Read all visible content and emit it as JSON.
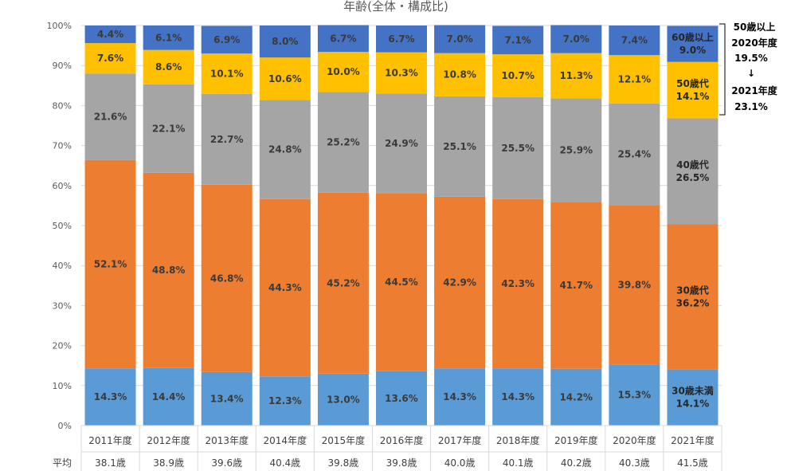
{
  "chart_data": {
    "type": "bar",
    "stacked": true,
    "title": "年齢(全体・構成比)",
    "categories": [
      "2011年度",
      "2012年度",
      "2013年度",
      "2014年度",
      "2015年度",
      "2016年度",
      "2017年度",
      "2018年度",
      "2019年度",
      "2020年度",
      "2021年度"
    ],
    "yticks": [
      "0%",
      "10%",
      "20%",
      "30%",
      "40%",
      "50%",
      "60%",
      "70%",
      "80%",
      "90%",
      "100%"
    ],
    "ylim": [
      0,
      100
    ],
    "series": [
      {
        "name": "30歳未満",
        "color": "#5b9bd5",
        "values": [
          14.3,
          14.4,
          13.4,
          12.3,
          13.0,
          13.6,
          14.3,
          14.3,
          14.2,
          15.3,
          14.1
        ]
      },
      {
        "name": "30歳代",
        "color": "#ed7d31",
        "values": [
          52.1,
          48.8,
          46.8,
          44.3,
          45.2,
          44.5,
          42.9,
          42.3,
          41.7,
          39.8,
          36.2
        ]
      },
      {
        "name": "40歳代",
        "color": "#a5a5a5",
        "values": [
          21.6,
          22.1,
          22.7,
          24.8,
          25.2,
          24.9,
          25.1,
          25.5,
          25.9,
          25.4,
          26.5
        ]
      },
      {
        "name": "50歳代",
        "color": "#ffc000",
        "values": [
          7.6,
          8.6,
          10.1,
          10.6,
          10.0,
          10.3,
          10.8,
          10.7,
          11.3,
          12.1,
          14.1
        ]
      },
      {
        "name": "60歳以上",
        "color": "#4472c4",
        "values": [
          4.4,
          6.1,
          6.9,
          8.0,
          6.7,
          6.7,
          7.0,
          7.1,
          7.0,
          7.4,
          9.0
        ]
      }
    ],
    "average_label": "平均",
    "averages": [
      "38.1歳",
      "38.9歳",
      "39.6歳",
      "40.4歳",
      "39.8歳",
      "39.8歳",
      "40.0歳",
      "40.1歳",
      "40.2歳",
      "40.3歳",
      "41.5歳"
    ],
    "annotation": {
      "line1": "50歳以上",
      "line2": "2020年度",
      "line3": "19.5%",
      "arrow": "↓",
      "line4": "2021年度",
      "line5": "23.1%"
    }
  }
}
